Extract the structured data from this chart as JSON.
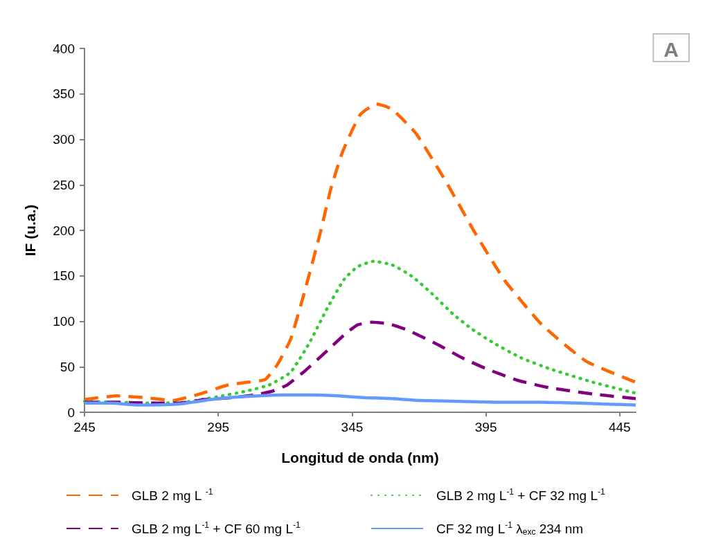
{
  "chart_data": {
    "type": "line",
    "xlabel": "Longitud de onda (nm)",
    "ylabel": "IF (u.a.)",
    "annotations": [
      "A"
    ],
    "xlim": [
      245,
      451
    ],
    "xticks": [
      245,
      295,
      345,
      395,
      445
    ],
    "ylim": [
      0,
      400
    ],
    "yticks": [
      0,
      50,
      100,
      150,
      200,
      250,
      300,
      350,
      400
    ],
    "grid": false,
    "legend": "bottom",
    "marker": "none",
    "series": [
      {
        "name": "GLB 2 mg L $^{-1}$",
        "color": "#ff6600",
        "line_style": "dashed",
        "x": [
          245,
          257,
          268,
          278,
          288,
          298.6,
          306,
          312.5,
          317,
          322,
          327,
          333.1,
          337,
          341.4,
          348,
          354,
          360,
          369,
          380,
          391,
          402,
          416,
          432.5,
          451
        ],
        "values": [
          14,
          18,
          16,
          13,
          20,
          30,
          33,
          36,
          52,
          80,
          130,
          197,
          245,
          286,
          327,
          339,
          333,
          306,
          254,
          197,
          145,
          96,
          56,
          33
        ]
      },
      {
        "name": "GLB 2 mg L$^{-1}$ + CF 32 mg L$^{-1}$",
        "color": "#33cc33",
        "line_style": "dotted",
        "x": [
          245,
          258,
          270,
          282,
          294.5,
          305,
          314,
          322,
          329,
          336,
          342,
          347,
          353,
          360,
          367.6,
          375,
          382.7,
          390,
          398,
          408,
          418.7,
          435,
          451
        ],
        "values": [
          12,
          11,
          10,
          11,
          17,
          23,
          30,
          44,
          76,
          116,
          146,
          160,
          166,
          162,
          149,
          130,
          108,
          91,
          76,
          60,
          48,
          33,
          21
        ]
      },
      {
        "name": "GLB 2 mg L$^{-1}$ + CF 60 mg L$^{-1}$",
        "color": "#800080",
        "line_style": "dashed",
        "x": [
          245,
          258,
          270,
          280,
          290,
          300,
          308.3,
          315,
          320.7,
          327.6,
          335.8,
          342,
          347,
          352.4,
          359,
          366,
          377.3,
          386,
          395,
          407,
          418.7,
          435,
          451
        ],
        "values": [
          11,
          11,
          10,
          10,
          14,
          16,
          19,
          23,
          30,
          46,
          68,
          85,
          96,
          99,
          97,
          90,
          74,
          60,
          48,
          35,
          27,
          20,
          15
        ]
      },
      {
        "name": "CF 32 mg L$^{-1}$ λ$_{exc}$ 234 nm",
        "color": "#6699ff",
        "line_style": "solid",
        "x": [
          245,
          255,
          265,
          280,
          295,
          310,
          320,
          330,
          340,
          350,
          360,
          370,
          385,
          400,
          415,
          430,
          440,
          451
        ],
        "values": [
          10,
          10,
          8,
          9,
          15,
          18,
          19,
          19,
          18,
          16,
          15,
          13,
          12,
          11,
          11,
          10,
          9,
          8
        ]
      }
    ]
  }
}
